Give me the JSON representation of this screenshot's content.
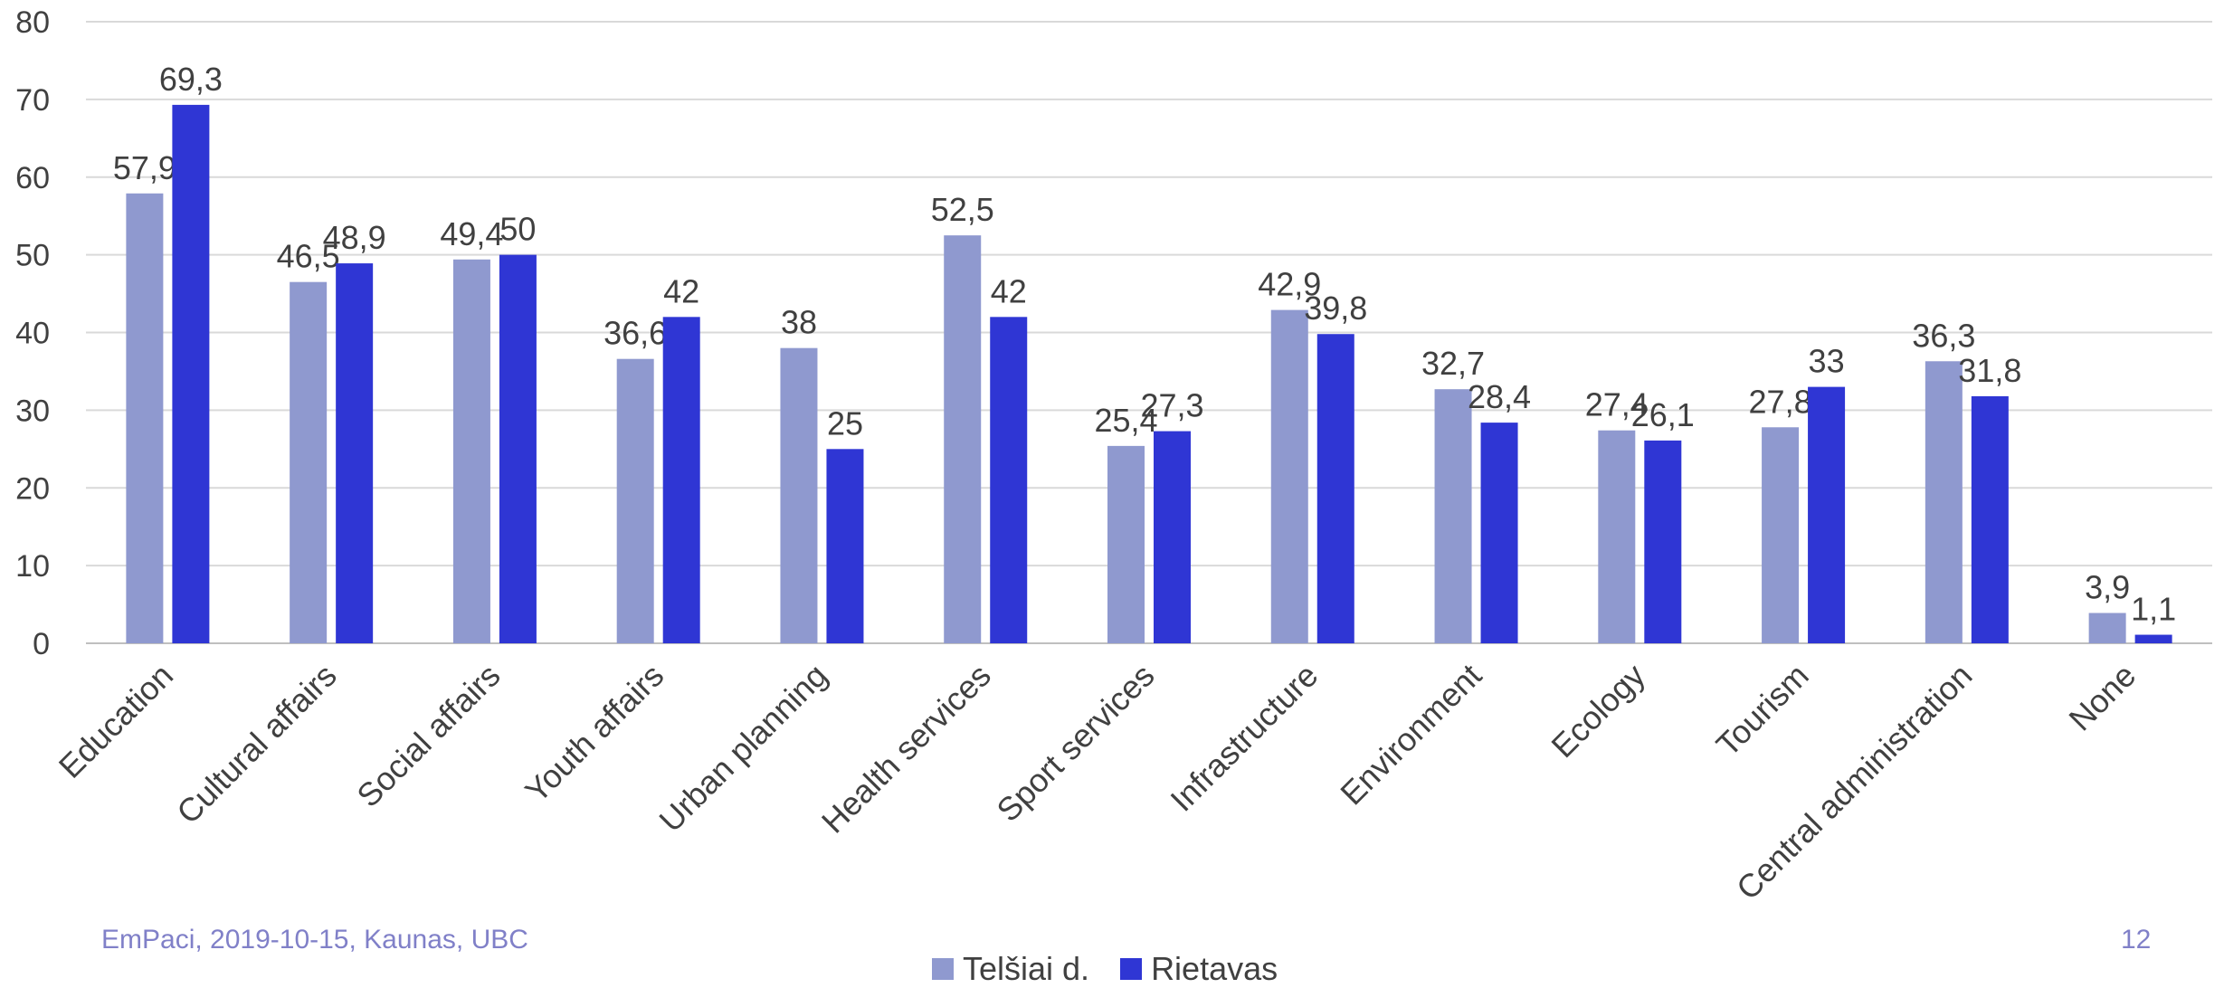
{
  "chart_data": {
    "type": "bar",
    "categories": [
      "Education",
      "Cultural affairs",
      "Social affairs",
      "Youth affairs",
      "Urban planning",
      "Health services",
      "Sport services",
      "Infrastructure",
      "Environment",
      "Ecology",
      "Tourism",
      "Central administration",
      "None"
    ],
    "series": [
      {
        "name": "Telšiai d.",
        "color": "#8f99cf",
        "values": [
          57.9,
          46.5,
          49.4,
          36.6,
          38,
          52.5,
          25.4,
          42.9,
          32.7,
          27.4,
          27.8,
          36.3,
          3.9
        ],
        "labels": [
          "57,9",
          "46,5",
          "49,4",
          "36,6",
          "38",
          "52,5",
          "25,4",
          "42,9",
          "32,7",
          "27,4",
          "27,8",
          "36,3",
          "3,9"
        ]
      },
      {
        "name": "Rietavas",
        "color": "#2f36d4",
        "values": [
          69.3,
          48.9,
          50,
          42,
          25,
          42,
          27.3,
          39.8,
          28.4,
          26.1,
          33,
          31.8,
          1.1
        ],
        "labels": [
          "69,3",
          "48,9",
          "50",
          "42",
          "25",
          "42",
          "27,3",
          "39,8",
          "28,4",
          "26,1",
          "33",
          "31,8",
          "1,1"
        ]
      }
    ],
    "yticks": [
      0,
      10,
      20,
      30,
      40,
      50,
      60,
      70,
      80
    ],
    "ylim": [
      0,
      80
    ],
    "grid": true,
    "legend_position": "bottom"
  },
  "footer": {
    "left_text": "EmPaci, 2019-10-15, Kaunas, UBC",
    "page_number": "12"
  }
}
